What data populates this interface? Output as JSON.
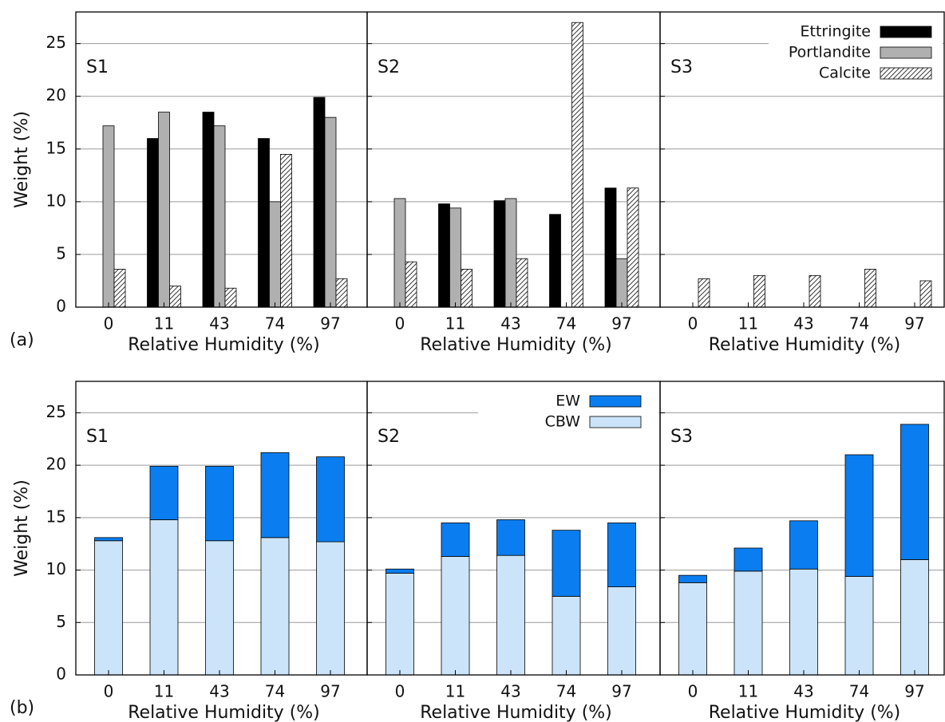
{
  "chart_data": [
    {
      "type": "bar",
      "annotation": "S1",
      "panel_label": "(a)",
      "y_label": "Weight (%)",
      "x_label": "Relative Humidity (%)",
      "categories": [
        "0",
        "11",
        "43",
        "74",
        "97"
      ],
      "series": [
        {
          "color": "#000000",
          "values": [
            null,
            16.0,
            18.5,
            16.0,
            19.9
          ]
        },
        {
          "color": "#b0b0b0",
          "values": [
            17.2,
            18.5,
            17.2,
            10.0,
            18.0
          ]
        },
        {
          "color": "#ffffff",
          "hatch": "diagonal",
          "values": [
            3.6,
            2.0,
            1.8,
            14.5,
            2.7
          ]
        }
      ],
      "ylim": [
        0,
        28
      ],
      "yticks": [
        0,
        5,
        10,
        15,
        20,
        25
      ],
      "ytick_labels": true,
      "grid": true
    },
    {
      "type": "bar",
      "annotation": "S2",
      "x_label": "Relative Humidity (%)",
      "categories": [
        "0",
        "11",
        "43",
        "74",
        "97"
      ],
      "series": [
        {
          "color": "#000000",
          "values": [
            null,
            9.8,
            10.1,
            8.8,
            11.3
          ]
        },
        {
          "color": "#b0b0b0",
          "values": [
            10.3,
            9.4,
            10.3,
            null,
            4.6
          ]
        },
        {
          "color": "#ffffff",
          "hatch": "diagonal",
          "values": [
            4.3,
            3.6,
            4.6,
            27.0,
            11.3
          ]
        }
      ],
      "ylim": [
        0,
        28
      ],
      "yticks": [
        0,
        5,
        10,
        15,
        20,
        25
      ],
      "ytick_labels": false,
      "grid": true
    },
    {
      "type": "bar",
      "annotation": "S3",
      "x_label": "Relative Humidity (%)",
      "categories": [
        "0",
        "11",
        "43",
        "74",
        "97"
      ],
      "series": [
        {
          "name": "Ettringite",
          "color": "#000000",
          "values": [
            null,
            null,
            null,
            null,
            null
          ]
        },
        {
          "name": "Portlandite",
          "color": "#b0b0b0",
          "values": [
            null,
            null,
            null,
            null,
            null
          ]
        },
        {
          "name": "Calcite",
          "color": "#ffffff",
          "hatch": "diagonal",
          "values": [
            2.7,
            3.0,
            3.0,
            3.6,
            2.5
          ]
        }
      ],
      "ylim": [
        0,
        28
      ],
      "yticks": [
        0,
        5,
        10,
        15,
        20,
        25
      ],
      "ytick_labels": false,
      "grid": true,
      "legend": "upper right"
    },
    {
      "type": "stacked_bar",
      "annotation": "S1",
      "panel_label": "(b)",
      "y_label": "Weight (%)",
      "x_label": "Relative Humidity (%)",
      "categories": [
        "0",
        "11",
        "43",
        "74",
        "97"
      ],
      "series": [
        {
          "color": "#cce4fa",
          "values": [
            12.8,
            14.8,
            12.8,
            13.1,
            12.7
          ]
        },
        {
          "color": "#0a7ef0",
          "values": [
            0.3,
            5.1,
            7.1,
            8.1,
            8.1
          ]
        }
      ],
      "ylim": [
        0,
        28
      ],
      "yticks": [
        0,
        5,
        10,
        15,
        20,
        25
      ],
      "ytick_labels": true,
      "grid": true
    },
    {
      "type": "stacked_bar",
      "annotation": "S2",
      "x_label": "Relative Humidity (%)",
      "categories": [
        "0",
        "11",
        "43",
        "74",
        "97"
      ],
      "series": [
        {
          "name": "CBW",
          "color": "#cce4fa",
          "values": [
            9.7,
            11.3,
            11.4,
            7.5,
            8.4
          ]
        },
        {
          "name": "EW",
          "color": "#0a7ef0",
          "values": [
            0.4,
            3.2,
            3.4,
            6.3,
            6.1
          ]
        }
      ],
      "ylim": [
        0,
        28
      ],
      "yticks": [
        0,
        5,
        10,
        15,
        20,
        25
      ],
      "ytick_labels": false,
      "grid": true,
      "legend": "upper right"
    },
    {
      "type": "stacked_bar",
      "annotation": "S3",
      "x_label": "Relative Humidity (%)",
      "categories": [
        "0",
        "11",
        "43",
        "74",
        "97"
      ],
      "series": [
        {
          "color": "#cce4fa",
          "values": [
            8.8,
            9.9,
            10.1,
            9.4,
            11.0
          ]
        },
        {
          "color": "#0a7ef0",
          "values": [
            0.7,
            2.2,
            4.6,
            11.6,
            12.9
          ]
        }
      ],
      "ylim": [
        0,
        28
      ],
      "yticks": [
        0,
        5,
        10,
        15,
        20,
        25
      ],
      "ytick_labels": false,
      "grid": true
    }
  ]
}
